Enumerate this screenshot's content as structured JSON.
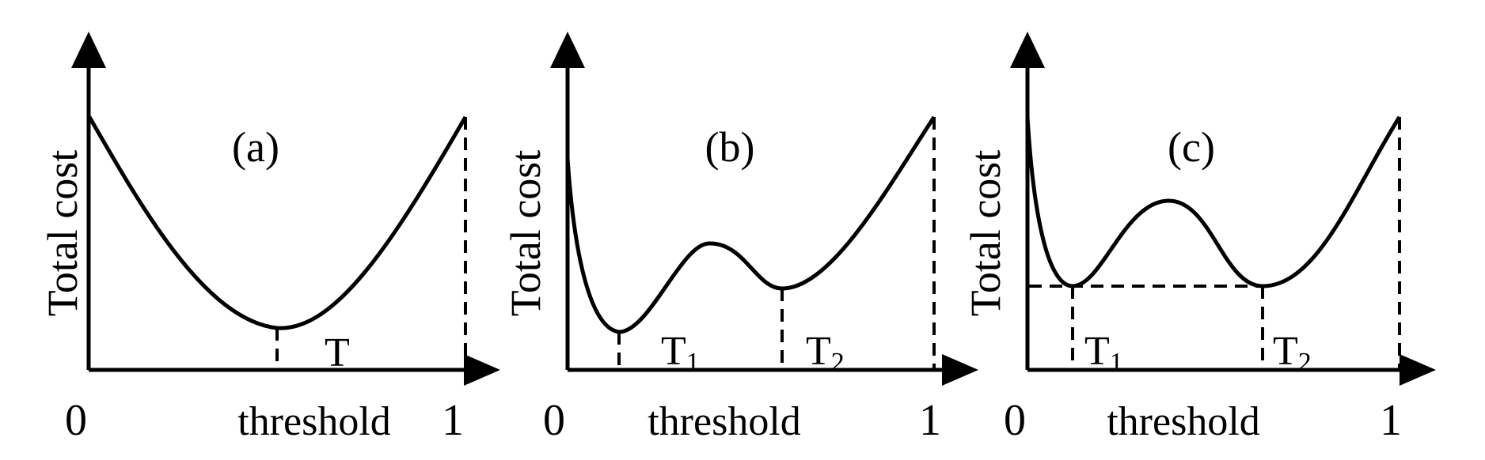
{
  "panels": [
    {
      "id": "a",
      "label": "(a)",
      "ylabel": "Total cost",
      "xlabel": "threshold",
      "x_start": "0",
      "x_end": "1",
      "markers": [
        {
          "name": "T",
          "sub": ""
        }
      ]
    },
    {
      "id": "b",
      "label": "(b)",
      "ylabel": "Total cost",
      "xlabel": "threshold",
      "x_start": "0",
      "x_end": "1",
      "markers": [
        {
          "name": "T",
          "sub": "1"
        },
        {
          "name": "T",
          "sub": "2"
        }
      ]
    },
    {
      "id": "c",
      "label": "(c)",
      "ylabel": "Total cost",
      "xlabel": "threshold",
      "x_start": "0",
      "x_end": "1",
      "markers": [
        {
          "name": "T",
          "sub": "1"
        },
        {
          "name": "T",
          "sub": "2"
        }
      ]
    }
  ]
}
